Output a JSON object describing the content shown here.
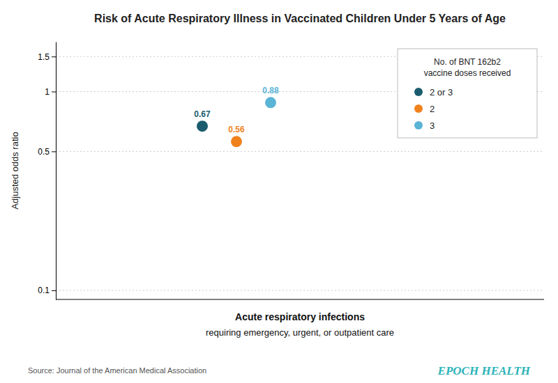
{
  "chart_data": {
    "type": "scatter",
    "title": "Risk of Acute Respiratory Illness in Vaccinated Children Under 5 Years of Age",
    "xlabel": "Acute respiratory infections",
    "xlabel_subtitle": "requiring emergency, urgent, or outpatient care",
    "ylabel": "Adjusted odds ratio",
    "source": "Source: Journal of the American Medical Association",
    "brand": "EPOCH HEALTH",
    "legend_title": "No. of BNT 162b2\nvaccine doses received",
    "series": [
      {
        "name": "2 or 3",
        "color": "#1a5c6e",
        "values": [
          0.67
        ]
      },
      {
        "name": "2",
        "color": "#f0821e",
        "values": [
          0.56
        ]
      },
      {
        "name": "3",
        "color": "#5ab4d6",
        "values": [
          0.88
        ]
      }
    ],
    "ylim": [
      0.09,
      1.78
    ],
    "yticks": [
      0.1,
      0.5,
      1,
      1.5
    ],
    "log": "y",
    "grid": true,
    "legend": "upper right",
    "data_labels": true,
    "tick_labels": "y"
  }
}
